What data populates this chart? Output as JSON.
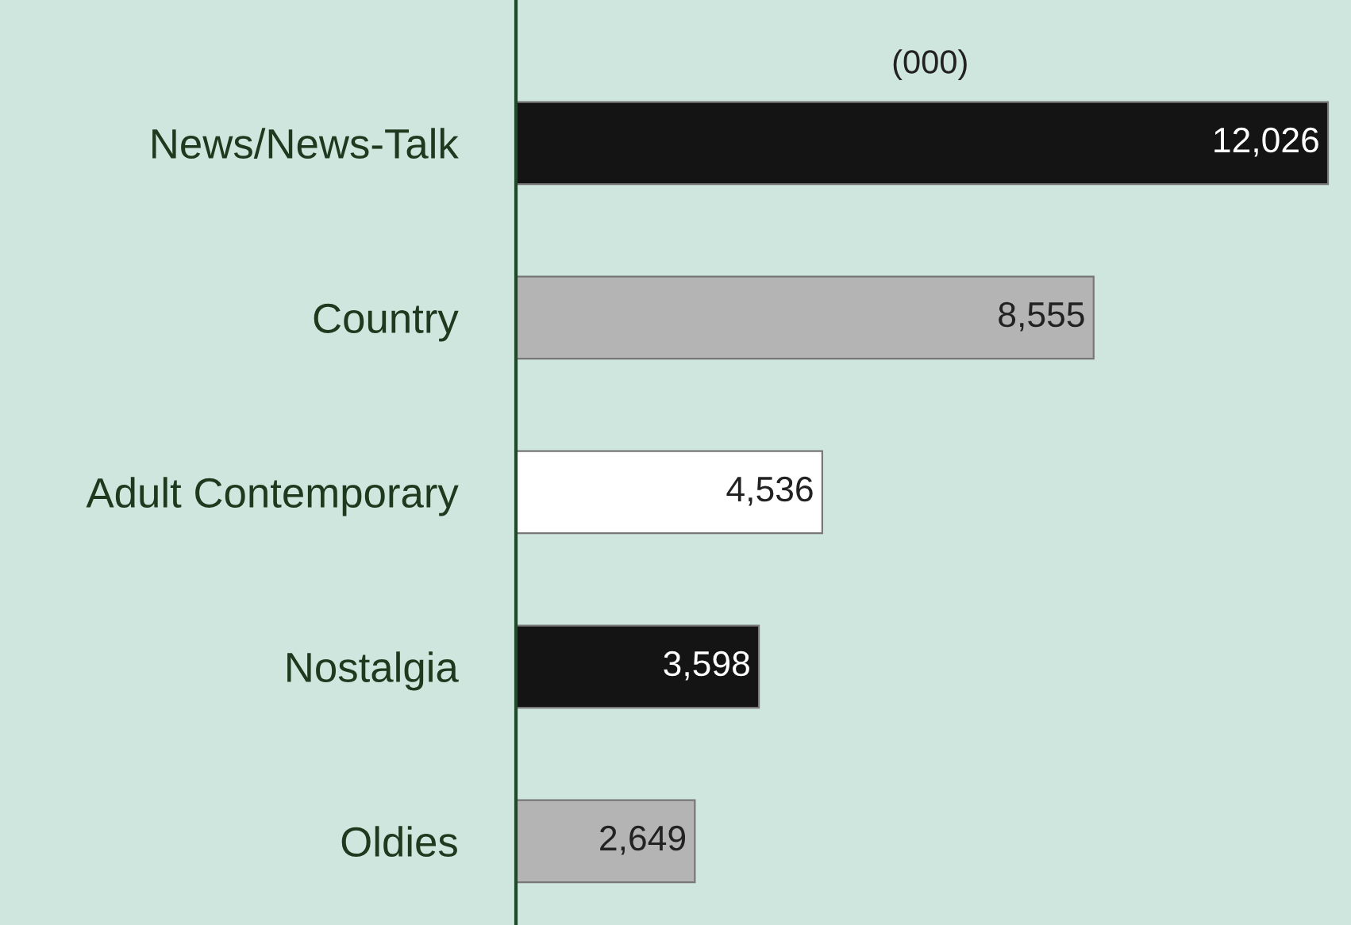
{
  "chart_data": {
    "type": "bar",
    "orientation": "horizontal",
    "categories": [
      "News/News-Talk",
      "Country",
      "Adult Contemporary",
      "Nostalgia",
      "Oldies"
    ],
    "values": [
      12026,
      8555,
      4536,
      3598,
      2649
    ],
    "colors": [
      "#141414",
      "#b4b4b4",
      "#ffffff",
      "#141414",
      "#b4b4b4"
    ],
    "value_labels": [
      "12,026",
      "8,555",
      "4,536",
      "3,598",
      "2,649"
    ],
    "annotations": [
      "(000)"
    ],
    "grid": false,
    "legend": false
  }
}
